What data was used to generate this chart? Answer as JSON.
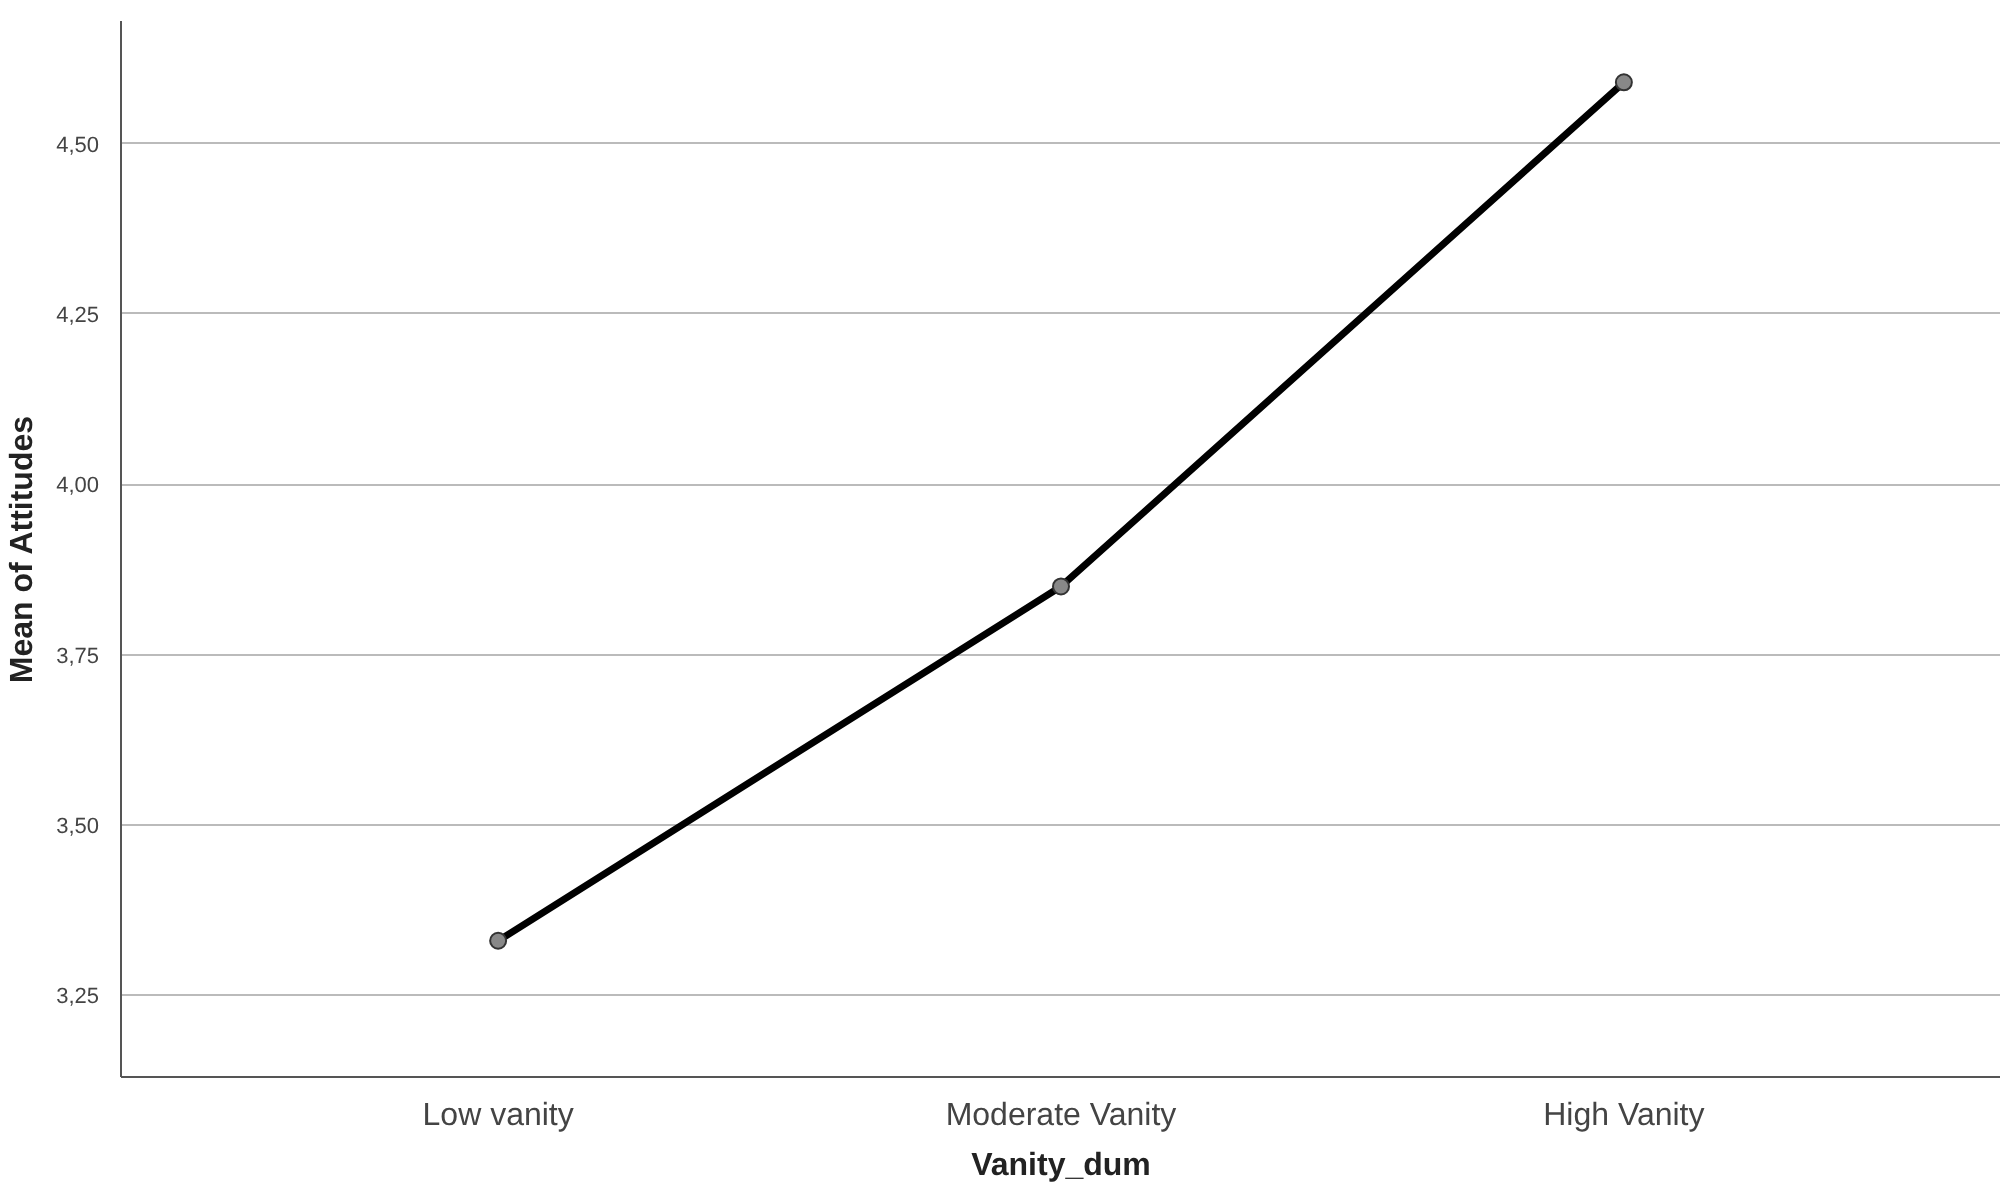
{
  "chart_data": {
    "type": "line",
    "xlabel": "Vanity_dum",
    "ylabel": "Mean of Attitudes",
    "categories": [
      "Low vanity",
      "Moderate Vanity",
      "High Vanity"
    ],
    "series": [
      {
        "color": "#000000",
        "values": [
          3.33,
          3.85,
          4.59
        ]
      }
    ],
    "ylim": [
      3.13,
      4.68
    ],
    "yticks": [
      {
        "value": 3.25,
        "label": "3,25"
      },
      {
        "value": 3.5,
        "label": "3,50"
      },
      {
        "value": 3.75,
        "label": "3,75"
      },
      {
        "value": 4.0,
        "label": "4,00"
      },
      {
        "value": 4.25,
        "label": "4,25"
      },
      {
        "value": 4.5,
        "label": "4,50"
      }
    ],
    "grid": "y",
    "marker": "circle",
    "line_style": "solid"
  }
}
